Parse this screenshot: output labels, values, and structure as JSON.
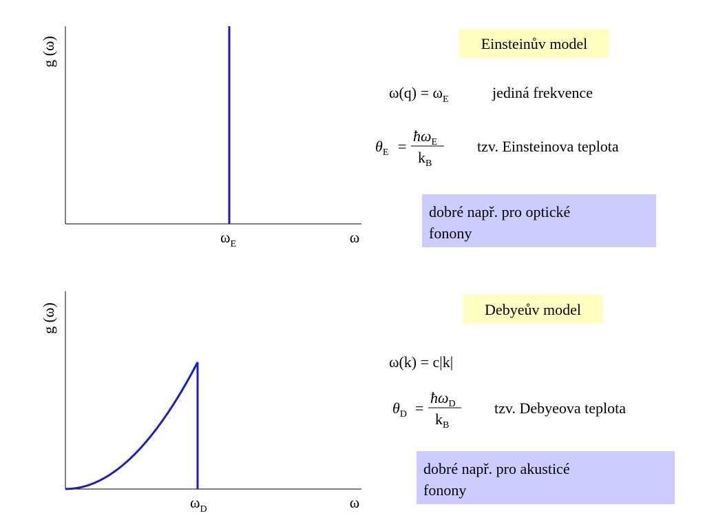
{
  "einstein": {
    "y_axis_label": "g (ω)",
    "x_axis_label": "ω",
    "frequency_label": {
      "symbol": "ω",
      "subscript": "E"
    },
    "title": "Einsteinův model",
    "dispersion": {
      "lhs": "ω(q) = ω",
      "subscript": "E",
      "note": "jediná frekvence"
    },
    "temperature": {
      "symbol": "θ",
      "subscript": "E",
      "equals": "=",
      "numerator": "ħω",
      "numerator_subscript": "E",
      "denominator": "k",
      "denominator_subscript": "B",
      "note": "tzv. Einsteinova teplota"
    },
    "remark": [
      "dobré např. pro optické",
      "fonony"
    ]
  },
  "debye": {
    "y_axis_label": "g (ω)",
    "x_axis_label": "ω",
    "frequency_label": {
      "symbol": "ω",
      "subscript": "D"
    },
    "title": "Debyeův model",
    "dispersion": {
      "lhs": "ω(k) = c|k|"
    },
    "temperature": {
      "symbol": "θ",
      "subscript": "D",
      "equals": "=",
      "numerator": "ħω",
      "numerator_subscript": "D",
      "denominator": "k",
      "denominator_subscript": "B",
      "note": "tzv. Debyeova teplota"
    },
    "remark": [
      "dobré např. pro akusticé",
      "fonony"
    ]
  }
}
